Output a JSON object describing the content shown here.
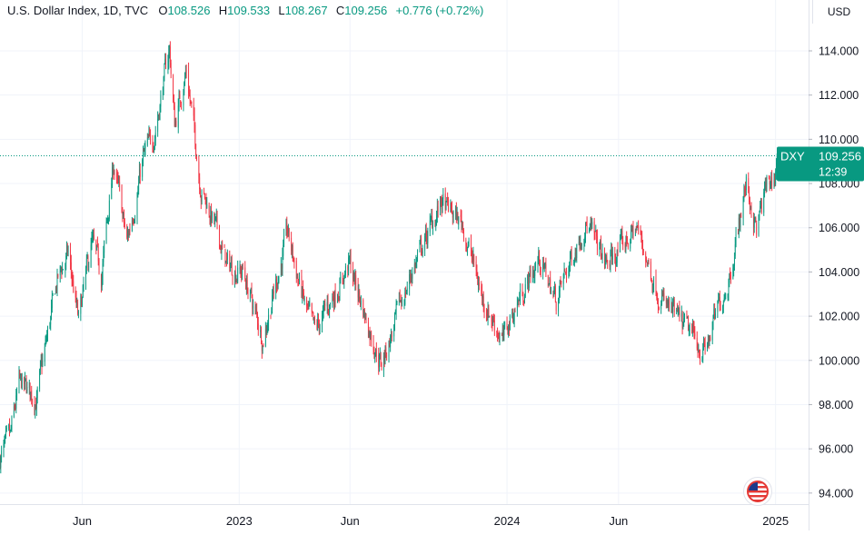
{
  "chart_data": {
    "type": "candlestick",
    "title": "U.S. Dollar Index, 1D, TVC",
    "ohlc_readout": {
      "open_label": "O",
      "open": "108.526",
      "high_label": "H",
      "high": "109.533",
      "low_label": "L",
      "low": "108.267",
      "close_label": "C",
      "close": "109.256",
      "change": "+0.776 (+0.72%)"
    },
    "currency": "USD",
    "y_ticks": [
      "114.000",
      "112.000",
      "110.000",
      "108.000",
      "106.000",
      "104.000",
      "102.000",
      "100.000",
      "98.000",
      "96.000",
      "94.000"
    ],
    "y_range": [
      93.5,
      116.3
    ],
    "x_ticks": [
      {
        "label": "Jun",
        "date": "2022-06-01"
      },
      {
        "label": "2023",
        "date": "2023-01-01"
      },
      {
        "label": "Jun",
        "date": "2023-06-01"
      },
      {
        "label": "2024",
        "date": "2024-01-01"
      },
      {
        "label": "Jun",
        "date": "2024-06-01"
      },
      {
        "label": "2025",
        "date": "2025-01-01"
      }
    ],
    "x_range": [
      "2022-02-09",
      "2025-02-15"
    ],
    "price_tag": {
      "symbol": "DXY",
      "price": "109.256",
      "countdown": "12:39"
    },
    "up_color": "#089981",
    "down_color": "#f23645",
    "anchors": [
      [
        "2022-02-09",
        95.6
      ],
      [
        "2022-02-23",
        96.4
      ],
      [
        "2022-03-07",
        98.9
      ],
      [
        "2022-03-31",
        98.3
      ],
      [
        "2022-04-28",
        103.6
      ],
      [
        "2022-05-13",
        104.8
      ],
      [
        "2022-05-27",
        101.7
      ],
      [
        "2022-06-14",
        105.3
      ],
      [
        "2022-06-27",
        103.8
      ],
      [
        "2022-07-14",
        108.9
      ],
      [
        "2022-08-01",
        105.3
      ],
      [
        "2022-08-23",
        109.1
      ],
      [
        "2022-09-07",
        110.2
      ],
      [
        "2022-09-28",
        114.1
      ],
      [
        "2022-10-05",
        110.7
      ],
      [
        "2022-10-21",
        113.2
      ],
      [
        "2022-11-10",
        107.8
      ],
      [
        "2022-11-30",
        106.0
      ],
      [
        "2022-12-15",
        104.3
      ],
      [
        "2023-01-06",
        104.0
      ],
      [
        "2023-02-02",
        101.0
      ],
      [
        "2023-03-08",
        105.7
      ],
      [
        "2023-03-31",
        102.5
      ],
      [
        "2023-04-14",
        101.2
      ],
      [
        "2023-05-31",
        104.4
      ],
      [
        "2023-06-22",
        102.0
      ],
      [
        "2023-07-14",
        99.8
      ],
      [
        "2023-08-25",
        104.1
      ],
      [
        "2023-10-03",
        107.1
      ],
      [
        "2023-11-01",
        106.2
      ],
      [
        "2023-11-29",
        102.8
      ],
      [
        "2023-12-27",
        100.9
      ],
      [
        "2024-01-12",
        102.4
      ],
      [
        "2024-02-14",
        104.6
      ],
      [
        "2024-03-08",
        102.7
      ],
      [
        "2024-04-16",
        106.3
      ],
      [
        "2024-05-16",
        104.3
      ],
      [
        "2024-06-26",
        106.0
      ],
      [
        "2024-07-17",
        103.8
      ],
      [
        "2024-08-05",
        102.4
      ],
      [
        "2024-09-27",
        100.4
      ],
      [
        "2024-10-31",
        104.0
      ],
      [
        "2024-11-22",
        108.0
      ],
      [
        "2024-12-06",
        105.9
      ],
      [
        "2024-12-20",
        107.9
      ],
      [
        "2024-12-31",
        108.3
      ],
      [
        "2025-01-03",
        109.26
      ]
    ]
  }
}
